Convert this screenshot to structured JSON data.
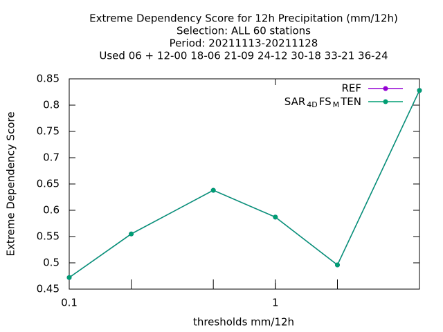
{
  "chart_data": {
    "type": "line",
    "title": [
      "Extreme Dependency Score  for 12h Precipitation (mm/12h)",
      "Selection: ALL     60 stations",
      "Period: 20211113-20211128",
      "Used  06 + 12-00 18-06 21-09 24-12 30-18 33-21 36-24"
    ],
    "xlabel": "thresholds mm/12h",
    "ylabel": "Extreme Dependency Score",
    "x": [
      0.1,
      0.2,
      0.5,
      1,
      2,
      5
    ],
    "series": [
      {
        "name": "REF",
        "color": "#9400d3",
        "values": [
          0.472,
          0.555,
          0.638,
          0.587,
          0.496,
          0.828
        ]
      },
      {
        "name": "SAR4DFSMTEN",
        "color": "#009e73",
        "values": [
          0.472,
          0.555,
          0.638,
          0.587,
          0.496,
          0.828
        ]
      }
    ],
    "xlog": true,
    "xlim": [
      0.1,
      5
    ],
    "xticks": [
      0.1,
      1
    ],
    "ylim": [
      0.45,
      0.85
    ],
    "yticks": [
      0.45,
      0.5,
      0.55,
      0.6,
      0.65,
      0.7,
      0.75,
      0.8,
      0.85
    ],
    "legend": "upper right"
  }
}
